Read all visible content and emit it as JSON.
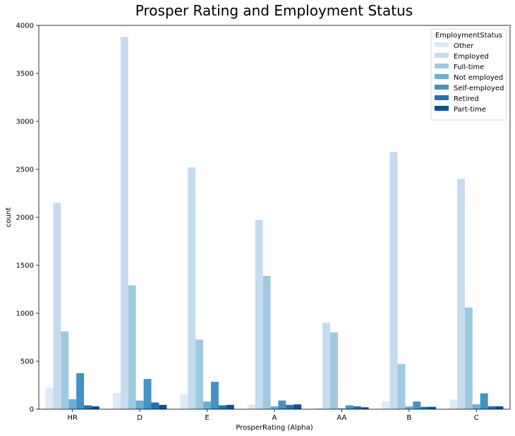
{
  "chart_data": {
    "type": "bar",
    "title": "Prosper Rating and Employment Status",
    "xlabel": "ProsperRating (Alpha)",
    "ylabel": "count",
    "ylim": [
      0,
      4000
    ],
    "yticks": [
      0,
      500,
      1000,
      1500,
      2000,
      2500,
      3000,
      3500,
      4000
    ],
    "grid": false,
    "categories": [
      "HR",
      "D",
      "E",
      "A",
      "AA",
      "B",
      "C"
    ],
    "legend": {
      "title": "EmploymentStatus",
      "placement": "top-right"
    },
    "series": [
      {
        "name": "Other",
        "color": "#deebf7",
        "values": [
          225,
          170,
          155,
          50,
          15,
          80,
          100
        ]
      },
      {
        "name": "Employed",
        "color": "#c6dbef",
        "values": [
          2150,
          3880,
          2520,
          1970,
          900,
          2680,
          2400
        ]
      },
      {
        "name": "Full-time",
        "color": "#9ecae1",
        "values": [
          810,
          1290,
          725,
          1390,
          800,
          470,
          1060
        ]
      },
      {
        "name": "Not employed",
        "color": "#6baed6",
        "values": [
          105,
          90,
          80,
          30,
          10,
          30,
          50
        ]
      },
      {
        "name": "Self-employed",
        "color": "#4292c6",
        "values": [
          375,
          315,
          285,
          90,
          40,
          80,
          165
        ]
      },
      {
        "name": "Retired",
        "color": "#2171b5",
        "values": [
          40,
          70,
          40,
          45,
          30,
          25,
          30
        ]
      },
      {
        "name": "Part-time",
        "color": "#08519c",
        "values": [
          30,
          45,
          45,
          50,
          20,
          25,
          30
        ]
      }
    ]
  }
}
